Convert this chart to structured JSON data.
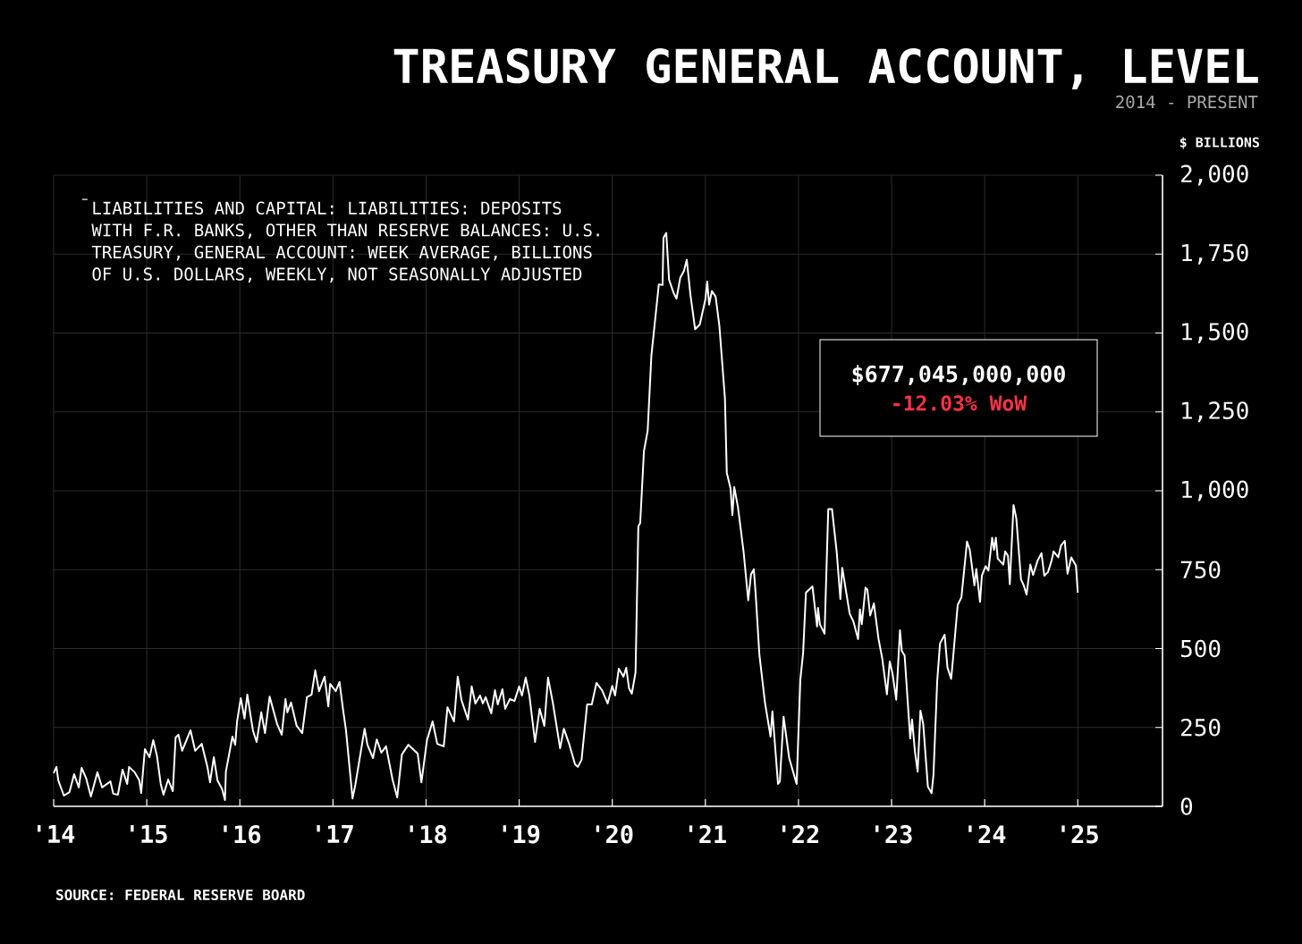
{
  "chart_data": {
    "type": "line",
    "title": "TREASURY GENERAL ACCOUNT, LEVEL",
    "subtitle": "2014 - PRESENT",
    "ylabel": "$ BILLIONS",
    "annotations": [
      "$677,045,000,000",
      "-12.03% WoW",
      "SOURCE: FEDERAL RESERVE BOARD"
    ],
    "xlim": [
      2014,
      2025.91
    ],
    "xticks": [
      {
        "value": 2014,
        "label": "'14"
      },
      {
        "value": 2015,
        "label": "'15"
      },
      {
        "value": 2016,
        "label": "'16"
      },
      {
        "value": 2017,
        "label": "'17"
      },
      {
        "value": 2018,
        "label": "'18"
      },
      {
        "value": 2019,
        "label": "'19"
      },
      {
        "value": 2020,
        "label": "'20"
      },
      {
        "value": 2021,
        "label": "'21"
      },
      {
        "value": 2022,
        "label": "'22"
      },
      {
        "value": 2023,
        "label": "'23"
      },
      {
        "value": 2024,
        "label": "'24"
      },
      {
        "value": 2025,
        "label": "'25"
      }
    ],
    "ylim": [
      0,
      2000
    ],
    "yticks": [
      0,
      250,
      500,
      750,
      {
        "value": 1000,
        "label": "1,000"
      },
      {
        "value": 1250,
        "label": "1,250"
      },
      {
        "value": 1500,
        "label": "1,500"
      },
      {
        "value": 1750,
        "label": "1,750"
      },
      {
        "value": 2000,
        "label": "2,000"
      }
    ],
    "grid": true,
    "legend": "top left",
    "x": [
      2014.0,
      2014.03,
      2014.05,
      2014.11,
      2014.17,
      2014.22,
      2014.27,
      2014.3,
      2014.35,
      2014.4,
      2014.47,
      2014.52,
      2014.61,
      2014.64,
      2014.69,
      2014.74,
      2014.79,
      2014.81,
      2014.87,
      2014.92,
      2014.94,
      2014.98,
      2015.03,
      2015.07,
      2015.11,
      2015.15,
      2015.18,
      2015.23,
      2015.28,
      2015.31,
      2015.34,
      2015.38,
      2015.47,
      2015.52,
      2015.59,
      2015.65,
      2015.68,
      2015.72,
      2015.76,
      2015.81,
      2015.84,
      2015.85,
      2015.92,
      2015.95,
      2015.97,
      2016.01,
      2016.05,
      2016.08,
      2016.14,
      2016.18,
      2016.23,
      2016.27,
      2016.32,
      2016.4,
      2016.45,
      2016.49,
      2016.51,
      2016.55,
      2016.61,
      2016.67,
      2016.72,
      2016.77,
      2016.81,
      2016.85,
      2016.91,
      2016.95,
      2016.97,
      2017.03,
      2017.07,
      2017.11,
      2017.14,
      2017.21,
      2017.24,
      2017.34,
      2017.37,
      2017.43,
      2017.47,
      2017.52,
      2017.57,
      2017.64,
      2017.69,
      2017.74,
      2017.81,
      2017.91,
      2017.95,
      2018.01,
      2018.07,
      2018.12,
      2018.19,
      2018.23,
      2018.3,
      2018.34,
      2018.38,
      2018.45,
      2018.49,
      2018.53,
      2018.58,
      2018.61,
      2018.64,
      2018.7,
      2018.74,
      2018.77,
      2018.82,
      2018.85,
      2018.9,
      2018.95,
      2019.0,
      2019.03,
      2019.07,
      2019.11,
      2019.17,
      2019.22,
      2019.27,
      2019.31,
      2019.36,
      2019.44,
      2019.48,
      2019.54,
      2019.6,
      2019.63,
      2019.67,
      2019.73,
      2019.78,
      2019.83,
      2019.89,
      2019.95,
      2020.0,
      2020.03,
      2020.07,
      2020.12,
      2020.15,
      2020.18,
      2020.21,
      2020.25,
      2020.28,
      2020.3,
      2020.34,
      2020.38,
      2020.42,
      2020.5,
      2020.54,
      2020.55,
      2020.58,
      2020.61,
      2020.66,
      2020.69,
      2020.73,
      2020.77,
      2020.8,
      2020.84,
      2020.89,
      2020.94,
      2021.0,
      2021.02,
      2021.04,
      2021.07,
      2021.11,
      2021.15,
      2021.21,
      2021.23,
      2021.27,
      2021.29,
      2021.31,
      2021.35,
      2021.41,
      2021.46,
      2021.49,
      2021.52,
      2021.54,
      2021.58,
      2021.64,
      2021.7,
      2021.72,
      2021.78,
      2021.8,
      2021.84,
      2021.9,
      2021.98,
      2022.02,
      2022.05,
      2022.08,
      2022.15,
      2022.2,
      2022.21,
      2022.23,
      2022.28,
      2022.32,
      2022.36,
      2022.41,
      2022.45,
      2022.47,
      2022.55,
      2022.59,
      2022.64,
      2022.66,
      2022.68,
      2022.72,
      2022.74,
      2022.77,
      2022.81,
      2022.86,
      2022.9,
      2022.95,
      2022.98,
      2023.01,
      2023.05,
      2023.09,
      2023.11,
      2023.14,
      2023.2,
      2023.22,
      2023.25,
      2023.28,
      2023.31,
      2023.34,
      2023.39,
      2023.43,
      2023.45,
      2023.49,
      2023.52,
      2023.57,
      2023.6,
      2023.64,
      2023.66,
      2023.71,
      2023.75,
      2023.81,
      2023.84,
      2023.89,
      2023.91,
      2023.95,
      2023.97,
      2024.01,
      2024.04,
      2024.08,
      2024.1,
      2024.12,
      2024.14,
      2024.2,
      2024.22,
      2024.25,
      2024.27,
      2024.31,
      2024.34,
      2024.39,
      2024.42,
      2024.45,
      2024.49,
      2024.52,
      2024.57,
      2024.61,
      2024.64,
      2024.68,
      2024.72,
      2024.74,
      2024.79,
      2024.82,
      2024.86,
      2024.89,
      2024.93,
      2024.98,
      2025.0
    ],
    "series": [
      {
        "name": "LIABILITIES AND CAPITAL: LIABILITIES: DEPOSITS WITH F.R. BANKS, OTHER THAN RESERVE BALANCES: U.S. TREASURY, GENERAL ACCOUNT: WEEK AVERAGE, BILLIONS OF U.S. DOLLARS, WEEKLY, NOT SEASONALLY ADJUSTED",
        "color": "#ffffff",
        "values": [
          105,
          125,
          82,
          34,
          45,
          102,
          60,
          122,
          88,
          31,
          108,
          60,
          79,
          40,
          37,
          116,
          71,
          125,
          108,
          82,
          42,
          181,
          156,
          210,
          159,
          71,
          37,
          85,
          48,
          218,
          227,
          176,
          241,
          176,
          198,
          127,
          76,
          156,
          82,
          54,
          20,
          110,
          221,
          195,
          269,
          343,
          278,
          354,
          241,
          204,
          298,
          232,
          348,
          261,
          227,
          340,
          298,
          329,
          255,
          232,
          346,
          354,
          431,
          365,
          411,
          317,
          388,
          365,
          394,
          303,
          241,
          25,
          68,
          246,
          195,
          153,
          212,
          170,
          190,
          85,
          28,
          164,
          195,
          167,
          76,
          210,
          269,
          198,
          190,
          314,
          269,
          411,
          337,
          275,
          380,
          326,
          351,
          326,
          346,
          295,
          368,
          323,
          371,
          309,
          340,
          334,
          380,
          351,
          408,
          351,
          204,
          309,
          255,
          408,
          331,
          184,
          246,
          195,
          133,
          125,
          147,
          323,
          323,
          391,
          368,
          326,
          382,
          351,
          436,
          411,
          439,
          374,
          357,
          425,
          887,
          898,
          1125,
          1190,
          1428,
          1654,
          1652,
          1802,
          1817,
          1669,
          1626,
          1609,
          1675,
          1697,
          1732,
          1620,
          1512,
          1527,
          1606,
          1663,
          1590,
          1633,
          1615,
          1524,
          1293,
          1057,
          1008,
          923,
          1012,
          948,
          808,
          653,
          735,
          751,
          674,
          481,
          329,
          221,
          301,
          71,
          79,
          284,
          153,
          71,
          402,
          487,
          677,
          697,
          570,
          629,
          577,
          547,
          942,
          942,
          808,
          657,
          756,
          610,
          586,
          530,
          624,
          577,
          693,
          687,
          605,
          643,
          530,
          468,
          355,
          459,
          421,
          338,
          558,
          492,
          478,
          215,
          275,
          176,
          110,
          303,
          261,
          62,
          42,
          100,
          397,
          516,
          544,
          440,
          404,
          468,
          638,
          662,
          839,
          813,
          700,
          752,
          648,
          731,
          761,
          747,
          851,
          813,
          851,
          785,
          766,
          808,
          794,
          704,
          955,
          912,
          719,
          700,
          671,
          766,
          733,
          780,
          802,
          731,
          742,
          780,
          808,
          789,
          827,
          841,
          737,
          789,
          763,
          677
        ]
      }
    ]
  }
}
